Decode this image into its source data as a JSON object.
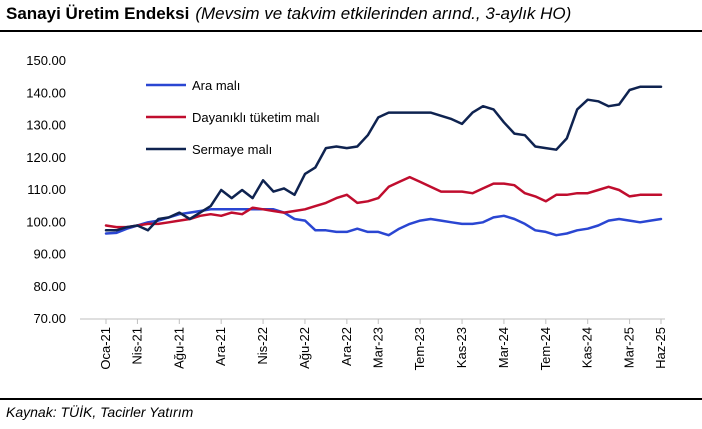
{
  "header": {
    "title": "Sanayi Üretim Endeksi",
    "subtitle": "(Mevsim ve takvim etkilerinden arınd., 3-aylık HO)"
  },
  "footer": {
    "source": "Kaynak: TÜİK, Tacirler Yatırım"
  },
  "chart_data": {
    "type": "line",
    "x": [
      "Oca-21",
      "Şub-21",
      "Mar-21",
      "Nis-21",
      "May-21",
      "Haz-21",
      "Tem-21",
      "Ağu-21",
      "Eyl-21",
      "Eki-21",
      "Kas-21",
      "Ara-21",
      "Oca-22",
      "Şub-22",
      "Mar-22",
      "Nis-22",
      "May-22",
      "Haz-22",
      "Tem-22",
      "Ağu-22",
      "Eyl-22",
      "Eki-22",
      "Kas-22",
      "Ara-22",
      "Oca-23",
      "Şub-23",
      "Mar-23",
      "Nis-23",
      "May-23",
      "Haz-23",
      "Tem-23",
      "Ağu-23",
      "Eyl-23",
      "Eki-23",
      "Kas-23",
      "Ara-23",
      "Oca-24",
      "Şub-24",
      "Mar-24",
      "Nis-24",
      "May-24",
      "Haz-24",
      "Tem-24",
      "Ağu-24",
      "Eyl-24",
      "Eki-24",
      "Kas-24",
      "Ara-24",
      "Oca-25",
      "Şub-25",
      "Mar-25",
      "Nis-25",
      "May-25",
      "Haz-25"
    ],
    "x_tick_labels": [
      "Oca-21",
      "Nis-21",
      "Ağu-21",
      "Ara-21",
      "Nis-22",
      "Ağu-22",
      "Ara-22",
      "Mar-23",
      "Tem-23",
      "Kas-23",
      "Mar-24",
      "Tem-24",
      "Kas-24",
      "Mar-25",
      "Haz-25"
    ],
    "x_tick_index": [
      0,
      3,
      7,
      11,
      15,
      19,
      23,
      26,
      30,
      34,
      38,
      42,
      46,
      50,
      53
    ],
    "y_ticks": [
      "70.00",
      "80.00",
      "90.00",
      "100.00",
      "110.00",
      "120.00",
      "130.00",
      "140.00",
      "150.00"
    ],
    "ylim": [
      70,
      150
    ],
    "legend_position": "top-left",
    "series": [
      {
        "name": "Ara malı",
        "color": "#2a46d2",
        "values": [
          96.5,
          96.7,
          98.0,
          99.0,
          100.0,
          100.5,
          101.5,
          102.5,
          103.0,
          103.5,
          104.0,
          104.0,
          104.0,
          104.0,
          104.0,
          104.0,
          104.0,
          103.0,
          101.0,
          100.5,
          97.5,
          97.5,
          97.0,
          97.0,
          98.0,
          97.0,
          97.0,
          96.0,
          98.0,
          99.5,
          100.5,
          101.0,
          100.5,
          100.0,
          99.5,
          99.5,
          100.0,
          101.5,
          102.0,
          101.0,
          99.5,
          97.5,
          97.0,
          96.0,
          96.5,
          97.5,
          98.0,
          99.0,
          100.5,
          101.0,
          100.5,
          100.0,
          100.5,
          101.0
        ]
      },
      {
        "name": "Dayanıklı tüketim malı",
        "color": "#c00d2e",
        "values": [
          99.0,
          98.5,
          98.5,
          99.0,
          99.5,
          99.5,
          100.0,
          100.5,
          101.0,
          102.0,
          102.5,
          102.0,
          103.0,
          102.5,
          104.5,
          104.0,
          103.5,
          103.0,
          103.5,
          104.0,
          105.0,
          106.0,
          107.5,
          108.5,
          106.0,
          106.5,
          107.5,
          111.0,
          112.5,
          114.0,
          112.5,
          111.0,
          109.5,
          109.5,
          109.5,
          109.0,
          110.5,
          112.0,
          112.0,
          111.5,
          109.0,
          108.0,
          106.5,
          108.5,
          108.5,
          109.0,
          109.0,
          110.0,
          111.0,
          110.0,
          108.0,
          108.5,
          108.5,
          108.5
        ]
      },
      {
        "name": "Sermaye malı",
        "color": "#0f2350",
        "values": [
          97.5,
          97.5,
          98.5,
          99.0,
          97.5,
          101.0,
          101.5,
          103.0,
          101.0,
          103.0,
          105.0,
          110.0,
          107.5,
          110.0,
          107.5,
          113.0,
          109.5,
          110.5,
          108.5,
          115.0,
          117.0,
          123.0,
          123.5,
          123.0,
          123.5,
          127.0,
          132.5,
          134.0,
          134.0,
          134.0,
          134.0,
          134.0,
          133.0,
          132.0,
          130.5,
          134.0,
          136.0,
          135.0,
          131.0,
          127.5,
          127.0,
          123.5,
          123.0,
          122.5,
          126.0,
          135.0,
          138.0,
          137.5,
          136.0,
          136.5,
          141.0,
          142.0,
          142.0,
          142.0
        ]
      }
    ]
  }
}
